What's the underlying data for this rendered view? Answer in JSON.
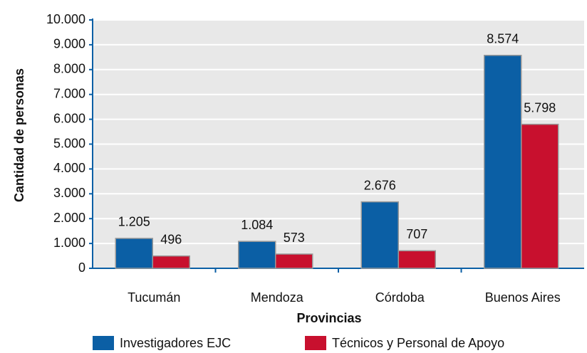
{
  "chart_data": {
    "type": "bar",
    "x_label": "Provincias",
    "y_label": "Cantidad de personas",
    "categories": [
      "Tucumán",
      "Mendoza",
      "Córdoba",
      "Buenos Aires"
    ],
    "series": [
      {
        "name": "Investigadores EJC",
        "color": "#0b5fa5",
        "values": [
          1205,
          1084,
          2676,
          8574
        ],
        "value_labels": [
          "1.205",
          "1.084",
          "2.676",
          "8.574"
        ]
      },
      {
        "name": "Técnicos y Personal de Apoyo",
        "color": "#c8102e",
        "values": [
          496,
          573,
          707,
          5798
        ],
        "value_labels": [
          "496",
          "573",
          "707",
          "5.798"
        ]
      }
    ],
    "ylim": [
      0,
      10000
    ],
    "yticks": [
      0,
      {
        "value": 1000,
        "label": "1.000"
      },
      {
        "value": 2000,
        "label": "2.000"
      },
      {
        "value": 3000,
        "label": "3.000"
      },
      {
        "value": 4000,
        "label": "4.000"
      },
      {
        "value": 5000,
        "label": "5.000"
      },
      {
        "value": 6000,
        "label": "6.000"
      },
      {
        "value": 7000,
        "label": "7.000"
      },
      {
        "value": 8000,
        "label": "8.000"
      },
      {
        "value": 9000,
        "label": "9.000"
      },
      {
        "value": 10000,
        "label": "10.000"
      }
    ],
    "grid": true,
    "legend": "bottom"
  }
}
